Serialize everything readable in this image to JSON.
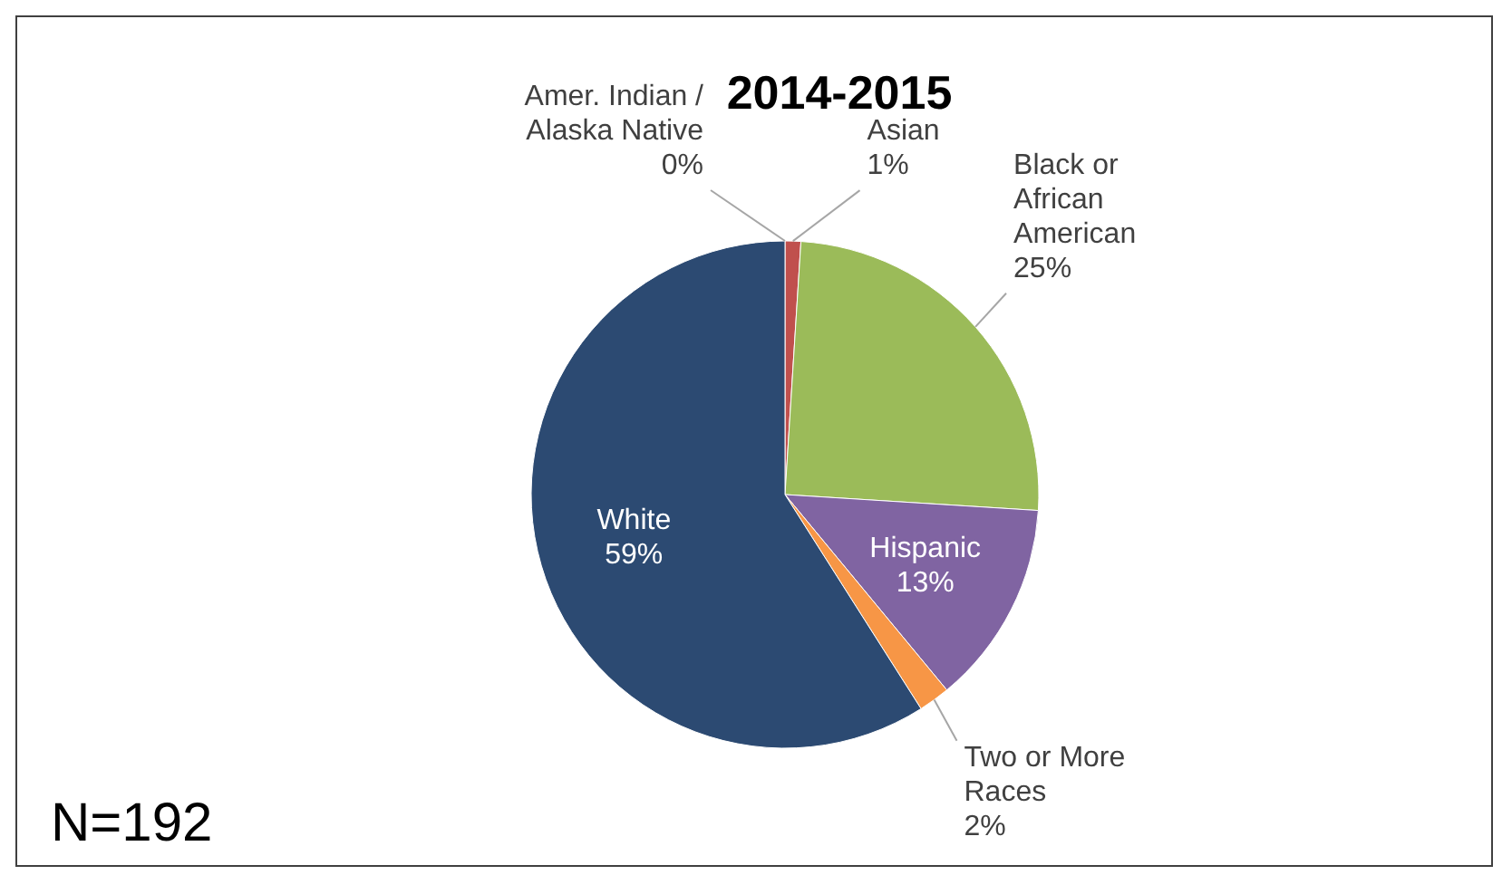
{
  "chart_data": {
    "type": "pie",
    "title": "2014-2015",
    "categories": [
      "Amer. Indian /\nAlaska Native",
      "Asian",
      "Black or\nAfrican\nAmerican",
      "Hispanic",
      "Two or More\nRaces",
      "White"
    ],
    "values": [
      0,
      1,
      25,
      13,
      2,
      59
    ],
    "colors": [
      "#4f81bd",
      "#c0504d",
      "#9bbb59",
      "#8064a2",
      "#f79646",
      "#2c4a72"
    ],
    "value_labels": [
      "0%",
      "1%",
      "25%",
      "13%",
      "2%",
      "59%"
    ],
    "annotations": [
      "N=192"
    ]
  }
}
